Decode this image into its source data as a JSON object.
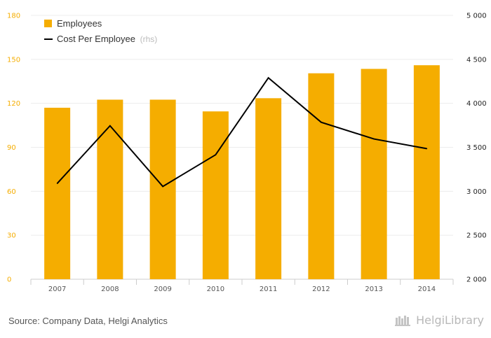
{
  "chart_data": {
    "type": "bar",
    "categories": [
      "2007",
      "2008",
      "2009",
      "2010",
      "2011",
      "2012",
      "2013",
      "2014"
    ],
    "series": [
      {
        "name": "Employees",
        "kind": "bar",
        "axis": "left",
        "values": [
          117,
          122.5,
          122.5,
          114.5,
          123.5,
          140.5,
          143.5,
          146
        ],
        "color": "#f5ad00"
      },
      {
        "name": "Cost Per Employee",
        "name_suffix": "(rhs)",
        "kind": "line",
        "axis": "right",
        "values": [
          3090,
          3745,
          3055,
          3415,
          4290,
          3785,
          3595,
          3485
        ],
        "color": "#000000"
      }
    ],
    "ylim_left": [
      0,
      180
    ],
    "yticks_left": [
      0,
      30,
      60,
      90,
      120,
      150,
      180
    ],
    "ytick_labels_left": [
      "0",
      "30",
      "60",
      "90",
      "120",
      "150",
      "180"
    ],
    "ylim_right": [
      2000,
      5000
    ],
    "yticks_right": [
      2000,
      2500,
      3000,
      3500,
      4000,
      4500,
      5000
    ],
    "ytick_labels_right": [
      "2 000",
      "2 500",
      "3 000",
      "3 500",
      "4 000",
      "4 500",
      "5 000"
    ],
    "left_tick_color": "#f5ad00",
    "right_tick_color": "#222222",
    "grid": true,
    "legend_placement": "top-left"
  },
  "legend": {
    "employees": "Employees",
    "cost": "Cost Per Employee",
    "cost_suffix": "(rhs)"
  },
  "footer": {
    "source": "Source: Company Data, Helgi Analytics",
    "brand": "HelgiLibrary"
  }
}
